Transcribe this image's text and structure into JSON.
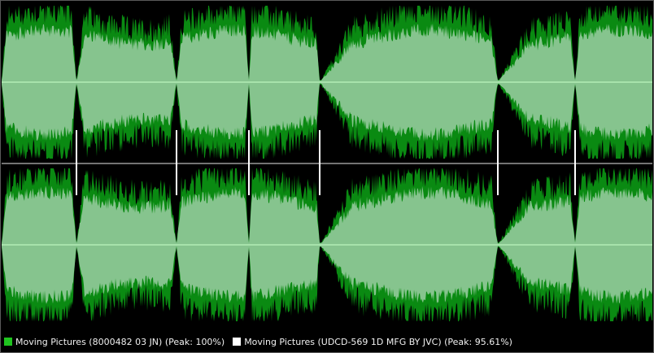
{
  "colors": {
    "background": "#000000",
    "track_a": "#0a8a12",
    "track_b": "#ffffff",
    "overlap": "#86c48e",
    "centerline": "#c8ffc8",
    "divider": "#b9b9b9",
    "legend_text": "#f0f0f0"
  },
  "legend": {
    "track_a_label": "Moving Pictures (8000482 03 JN) (Peak: 100%)",
    "track_a_color": "#1fc41f",
    "track_b_label": "Moving Pictures (UDCD-569 1D MFG BY JVC) (Peak: 95.61%)",
    "track_b_color": "#ffffff"
  }
}
